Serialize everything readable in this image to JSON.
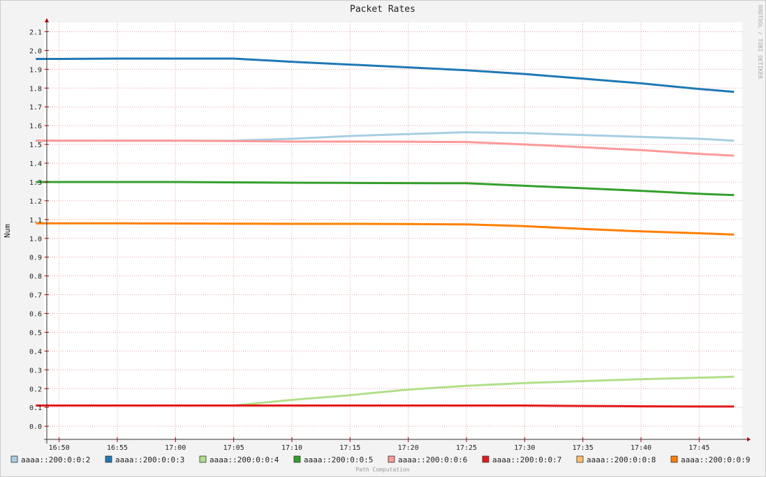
{
  "chart_data": {
    "type": "line",
    "title": "Packet Rates",
    "y_label": "Num",
    "watermark": "RRDTOOL / TOBI OETIKER",
    "footer": "Path Computation",
    "x": [
      1008,
      1010,
      1015,
      1020,
      1025,
      1030,
      1035,
      1040,
      1045,
      1050,
      1055,
      1060,
      1065,
      1068
    ],
    "xlim": [
      1008.7,
      1068.7
    ],
    "xticks": [
      {
        "value": 1010,
        "label": "16:50"
      },
      {
        "value": 1015,
        "label": "16:55"
      },
      {
        "value": 1020,
        "label": "17:00"
      },
      {
        "value": 1025,
        "label": "17:05"
      },
      {
        "value": 1030,
        "label": "17:10"
      },
      {
        "value": 1035,
        "label": "17:15"
      },
      {
        "value": 1040,
        "label": "17:20"
      },
      {
        "value": 1045,
        "label": "17:25"
      },
      {
        "value": 1050,
        "label": "17:30"
      },
      {
        "value": 1055,
        "label": "17:35"
      },
      {
        "value": 1060,
        "label": "17:40"
      },
      {
        "value": 1065,
        "label": "17:45"
      }
    ],
    "ylim": [
      -0.07,
      2.15
    ],
    "yticks": [
      {
        "value": 0,
        "label": "0.0"
      },
      0.1,
      0.2,
      0.3,
      0.4,
      0.5,
      0.6,
      0.7,
      0.8,
      0.9,
      {
        "value": 1,
        "label": "1.0"
      },
      1.1,
      1.2,
      1.3,
      1.4,
      1.5,
      1.6,
      1.7,
      1.8,
      1.9,
      {
        "value": 2,
        "label": "2.0"
      },
      2.1
    ],
    "grid": true,
    "legend": "bottom",
    "series": [
      {
        "name": "aaaa::200:0:0:2",
        "color": "#a6cee3",
        "values": [
          1.52,
          1.52,
          1.52,
          1.52,
          1.52,
          1.53,
          1.545,
          1.555,
          1.565,
          1.56,
          1.55,
          1.54,
          1.53,
          1.52
        ]
      },
      {
        "name": "aaaa::200:0:0:3",
        "color": "#1f78b4",
        "values": [
          1.955,
          1.955,
          1.957,
          1.957,
          1.957,
          1.94,
          1.925,
          1.91,
          1.895,
          1.875,
          1.85,
          1.825,
          1.795,
          1.78
        ]
      },
      {
        "name": "aaaa::200:0:0:4",
        "color": "#b2df8a",
        "values": [
          null,
          null,
          null,
          null,
          0.11,
          0.14,
          0.165,
          0.195,
          0.215,
          0.23,
          0.24,
          0.25,
          0.258,
          0.263
        ]
      },
      {
        "name": "aaaa::200:0:0:5",
        "color": "#33a02c",
        "values": [
          1.3,
          1.3,
          1.3,
          1.3,
          1.298,
          1.296,
          1.295,
          1.294,
          1.293,
          1.28,
          1.267,
          1.253,
          1.237,
          1.23
        ]
      },
      {
        "name": "aaaa::200:0:0:6",
        "color": "#fb9a99",
        "values": [
          1.52,
          1.52,
          1.52,
          1.52,
          1.518,
          1.515,
          1.515,
          1.514,
          1.513,
          1.5,
          1.485,
          1.47,
          1.45,
          1.44
        ]
      },
      {
        "name": "aaaa::200:0:0:7",
        "color": "#e31a1c",
        "values": [
          0.11,
          0.11,
          0.11,
          0.11,
          0.11,
          0.11,
          0.11,
          0.11,
          0.11,
          0.11,
          0.108,
          0.106,
          0.105,
          0.105
        ]
      },
      {
        "name": "aaaa::200:0:0:8",
        "color": "#fdbf6f",
        "values": [
          null,
          null,
          null,
          null,
          null,
          null,
          null,
          null,
          null,
          null,
          null,
          null,
          null,
          null
        ]
      },
      {
        "name": "aaaa::200:0:0:9",
        "color": "#ff7f00",
        "values": [
          1.08,
          1.08,
          1.08,
          1.079,
          1.078,
          1.077,
          1.077,
          1.076,
          1.074,
          1.065,
          1.05,
          1.037,
          1.027,
          1.02
        ]
      }
    ]
  }
}
